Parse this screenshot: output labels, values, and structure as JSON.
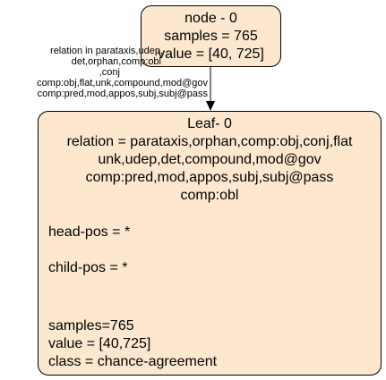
{
  "root": {
    "title": "node - 0",
    "samples": "samples = 765",
    "value": "value = [40, 725]"
  },
  "edge": {
    "label_lines": [
      "relation in parataxis,udep,",
      "det,orphan,comp:obl",
      ",conj",
      "comp:obj,flat,unk,compound,mod@gov",
      "comp:pred,mod,appos,subj,subj@pass"
    ]
  },
  "leaf": {
    "title": "Leaf- 0",
    "relation_lines": [
      "relation = parataxis,orphan,comp:obj,conj,flat",
      "unk,udep,det,compound,mod@gov",
      "comp:pred,mod,appos,subj,subj@pass",
      "comp:obl"
    ],
    "head_pos": "head-pos = *",
    "child_pos": "child-pos = *",
    "samples": "samples=765",
    "value": "value = [40,725]",
    "class": "class = chance-agreement"
  },
  "colors": {
    "node_fill": "#fde8cf",
    "stroke": "#000000"
  }
}
